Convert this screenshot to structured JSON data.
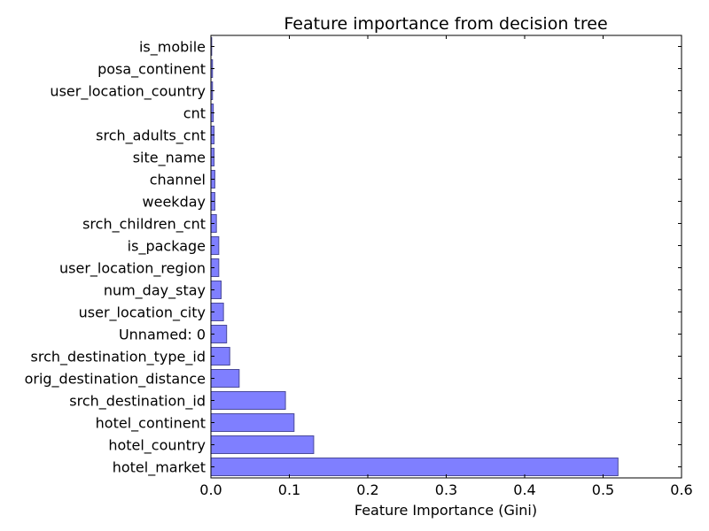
{
  "chart_data": {
    "type": "bar",
    "orientation": "horizontal",
    "title": "Feature importance from decision tree",
    "xlabel": "Feature Importance (Gini)",
    "ylabel": "",
    "xlim": [
      0,
      0.6
    ],
    "x_ticks": [
      "0.0",
      "0.1",
      "0.2",
      "0.3",
      "0.4",
      "0.5",
      "0.6"
    ],
    "grid": false,
    "bar_color": "#7f7fff",
    "bar_edge_color": "#4a4a9a",
    "categories": [
      "hotel_market",
      "hotel_country",
      "hotel_continent",
      "srch_destination_id",
      "orig_destination_distance",
      "srch_destination_type_id",
      "Unnamed: 0",
      "user_location_city",
      "num_day_stay",
      "user_location_region",
      "is_package",
      "srch_children_cnt",
      "weekday",
      "channel",
      "site_name",
      "srch_adults_cnt",
      "cnt",
      "user_location_country",
      "posa_continent",
      "is_mobile"
    ],
    "values": [
      0.519,
      0.131,
      0.106,
      0.095,
      0.036,
      0.024,
      0.02,
      0.016,
      0.013,
      0.01,
      0.01,
      0.007,
      0.005,
      0.005,
      0.004,
      0.004,
      0.003,
      0.002,
      0.002,
      0.001
    ]
  }
}
